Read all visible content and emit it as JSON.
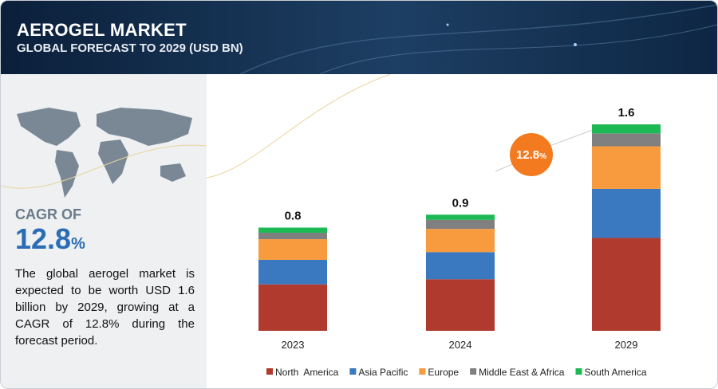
{
  "header": {
    "title": "AEROGEL MARKET",
    "subtitle": "GLOBAL FORECAST TO 2029 (USD BN)"
  },
  "sidebar": {
    "cagr_label": "CAGR OF",
    "cagr_value": "12.8",
    "cagr_unit": "%",
    "description": "The global aerogel market is expected to be worth USD 1.6 billion by 2029, growing at a CAGR of 12.8% during the forecast period."
  },
  "chart_data": {
    "type": "bar",
    "stacked": true,
    "categories": [
      "2023",
      "2024",
      "2029"
    ],
    "totals": [
      "0.8",
      "0.9",
      "1.6"
    ],
    "series": [
      {
        "name": "North  America",
        "color": "#b03a2e",
        "values": [
          0.36,
          0.4,
          0.72
        ]
      },
      {
        "name": "Asia Pacific",
        "color": "#3a78c0",
        "values": [
          0.19,
          0.21,
          0.38
        ]
      },
      {
        "name": "Europe",
        "color": "#f79b3e",
        "values": [
          0.16,
          0.18,
          0.33
        ]
      },
      {
        "name": "Middle East & Africa",
        "color": "#808080",
        "values": [
          0.05,
          0.07,
          0.1
        ]
      },
      {
        "name": "South America",
        "color": "#1db954",
        "values": [
          0.04,
          0.04,
          0.07
        ]
      }
    ]
  }
}
